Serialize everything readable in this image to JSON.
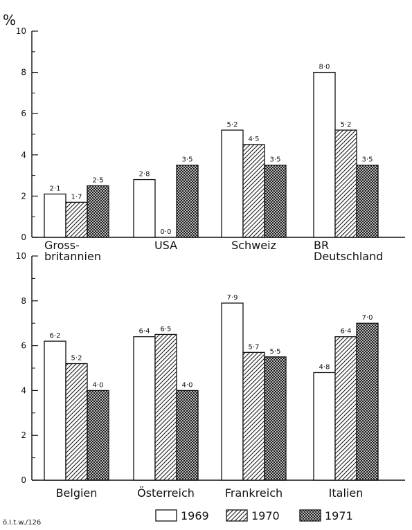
{
  "chart_data": {
    "type": "bar",
    "unit_label": "%",
    "ylim": [
      0,
      10
    ],
    "yticks": [
      "0",
      "2",
      "4",
      "6",
      "8",
      "10"
    ],
    "grid": false,
    "legend_position": "bottom",
    "series_names": [
      "1969",
      "1970",
      "1971"
    ],
    "series_patterns": [
      "blank",
      "hatched",
      "crosshatched"
    ],
    "source_note": "ö.I.t.w./126",
    "panels": [
      {
        "categories": [
          "Gross-\nbritannien",
          "USA",
          "Schweiz",
          "BR\nDeutschland"
        ],
        "series": [
          {
            "name": "1969",
            "values": [
              2.1,
              2.8,
              5.2,
              8.0
            ],
            "labels": [
              "2·1",
              "2·8",
              "5·2",
              "8·0"
            ]
          },
          {
            "name": "1970",
            "values": [
              1.7,
              0.0,
              4.5,
              5.2
            ],
            "labels": [
              "1·7",
              "0·0",
              "4·5",
              "5·2"
            ]
          },
          {
            "name": "1971",
            "values": [
              2.5,
              3.5,
              3.5,
              3.5
            ],
            "labels": [
              "2·5",
              "3·5",
              "3·5",
              "3·5"
            ]
          }
        ]
      },
      {
        "categories": [
          "Belgien",
          "Österreich",
          "Frankreich",
          "Italien"
        ],
        "series": [
          {
            "name": "1969",
            "values": [
              6.2,
              6.4,
              7.9,
              4.8
            ],
            "labels": [
              "6·2",
              "6·4",
              "7·9",
              "4·8"
            ]
          },
          {
            "name": "1970",
            "values": [
              5.2,
              6.5,
              5.7,
              6.4
            ],
            "labels": [
              "5·2",
              "6·5",
              "5·7",
              "6·4"
            ]
          },
          {
            "name": "1971",
            "values": [
              4.0,
              4.0,
              5.5,
              7.0
            ],
            "labels": [
              "4·0",
              "4·0",
              "5·5",
              "7·0"
            ]
          }
        ]
      }
    ]
  }
}
